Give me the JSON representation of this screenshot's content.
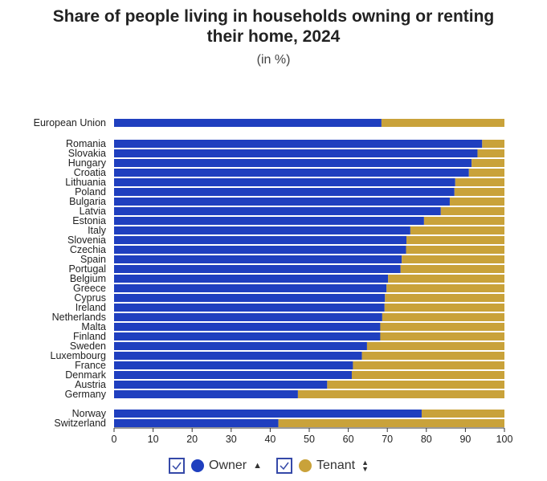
{
  "chart_data": {
    "type": "bar",
    "orientation": "horizontal",
    "stacked": true,
    "title_line1": "Share of people living in households owning or renting",
    "title_line2": "their home, 2024",
    "subtitle": "(in %)",
    "xlim": [
      0,
      100
    ],
    "xticks": [
      "0",
      "10",
      "20",
      "30",
      "40",
      "50",
      "60",
      "70",
      "80",
      "90",
      "100"
    ],
    "grid": false,
    "legend_placement": "bottom",
    "categories": [
      "European Union",
      "Romania",
      "Slovakia",
      "Hungary",
      "Croatia",
      "Lithuania",
      "Poland",
      "Bulgaria",
      "Latvia",
      "Estonia",
      "Italy",
      "Slovenia",
      "Czechia",
      "Spain",
      "Portugal",
      "Belgium",
      "Greece",
      "Cyprus",
      "Ireland",
      "Netherlands",
      "Malta",
      "Finland",
      "Sweden",
      "Luxembourg",
      "France",
      "Denmark",
      "Austria",
      "Germany",
      "Norway",
      "Switzerland"
    ],
    "series": [
      {
        "name": "Owner",
        "color": "#1f3fbf",
        "values": [
          68.5,
          94.3,
          93.1,
          91.6,
          90.9,
          87.4,
          87.2,
          86.0,
          83.7,
          79.4,
          75.9,
          74.9,
          74.8,
          73.7,
          73.4,
          70.2,
          69.8,
          69.4,
          69.3,
          68.7,
          68.2,
          68.2,
          64.8,
          63.5,
          61.2,
          60.9,
          54.6,
          47.1,
          78.8,
          42.1
        ]
      },
      {
        "name": "Tenant",
        "color": "#c9a23a",
        "values": [
          31.5,
          5.7,
          6.9,
          8.4,
          9.1,
          12.6,
          12.8,
          14.0,
          16.3,
          20.6,
          24.1,
          25.1,
          25.2,
          26.3,
          26.6,
          29.8,
          30.2,
          30.6,
          30.7,
          31.3,
          31.8,
          31.8,
          35.2,
          36.5,
          38.8,
          39.1,
          45.4,
          52.9,
          21.2,
          57.9
        ]
      }
    ]
  },
  "legend": {
    "owner_label": "Owner",
    "tenant_label": "Tenant"
  }
}
